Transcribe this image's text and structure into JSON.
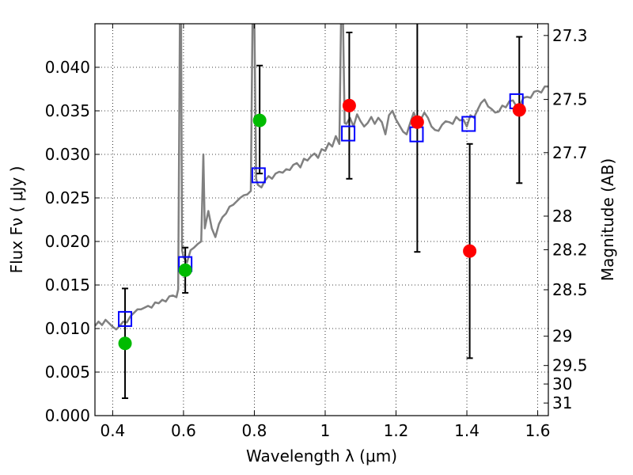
{
  "chart_data": {
    "type": "scatter",
    "xlabel": "Wavelength  λ (μm)",
    "ylabel": "Flux  Fν  ( μJy )",
    "y2label": "Magnitude (AB)",
    "xlim": [
      0.35,
      1.63
    ],
    "ylim": [
      0.0,
      0.045
    ],
    "grid": true,
    "grid_style": "dotted",
    "x_ticks": [
      0.4,
      0.6,
      0.8,
      1.0,
      1.2,
      1.4,
      1.6
    ],
    "x_tick_labels": [
      "0.4",
      "0.6",
      "0.8",
      "1",
      "1.2",
      "1.4",
      "1.6"
    ],
    "y_ticks": [
      0.0,
      0.005,
      0.01,
      0.015,
      0.02,
      0.025,
      0.03,
      0.035,
      0.04
    ],
    "y_tick_labels": [
      "0.000",
      "0.005",
      "0.010",
      "0.015",
      "0.020",
      "0.025",
      "0.030",
      "0.035",
      "0.040"
    ],
    "y2_ticks": [
      27.3,
      27.5,
      27.7,
      28,
      28.2,
      28.5,
      29,
      29.5,
      30,
      31
    ],
    "y2_tick_labels": [
      "27.3",
      "27.5",
      "27.7",
      "28",
      "28.2",
      "28.5",
      "29",
      "29.5",
      "30",
      "31"
    ],
    "series": [
      {
        "style": "line",
        "color": "#808080",
        "x": [
          0.35,
          0.36,
          0.37,
          0.38,
          0.39,
          0.4,
          0.41,
          0.42,
          0.43,
          0.44,
          0.45,
          0.46,
          0.47,
          0.48,
          0.49,
          0.5,
          0.51,
          0.52,
          0.53,
          0.54,
          0.55,
          0.56,
          0.57,
          0.58,
          0.585,
          0.59,
          0.593,
          0.596,
          0.6,
          0.61,
          0.62,
          0.63,
          0.64,
          0.65,
          0.656,
          0.66,
          0.67,
          0.68,
          0.69,
          0.7,
          0.71,
          0.72,
          0.73,
          0.74,
          0.75,
          0.76,
          0.77,
          0.78,
          0.79,
          0.795,
          0.8,
          0.805,
          0.81,
          0.82,
          0.83,
          0.84,
          0.85,
          0.86,
          0.87,
          0.88,
          0.89,
          0.9,
          0.91,
          0.92,
          0.93,
          0.94,
          0.95,
          0.96,
          0.97,
          0.98,
          0.99,
          1.0,
          1.01,
          1.02,
          1.03,
          1.04,
          1.045,
          1.05,
          1.055,
          1.06,
          1.07,
          1.08,
          1.09,
          1.1,
          1.11,
          1.12,
          1.13,
          1.14,
          1.15,
          1.16,
          1.17,
          1.18,
          1.19,
          1.2,
          1.21,
          1.22,
          1.23,
          1.24,
          1.25,
          1.26,
          1.27,
          1.28,
          1.29,
          1.3,
          1.31,
          1.32,
          1.33,
          1.34,
          1.35,
          1.36,
          1.37,
          1.38,
          1.39,
          1.4,
          1.41,
          1.42,
          1.43,
          1.44,
          1.45,
          1.46,
          1.47,
          1.48,
          1.49,
          1.5,
          1.51,
          1.52,
          1.53,
          1.54,
          1.55,
          1.56,
          1.57,
          1.58,
          1.59,
          1.6,
          1.61,
          1.62,
          1.63
        ],
        "y": [
          0.0103,
          0.0108,
          0.0104,
          0.011,
          0.0106,
          0.0102,
          0.0099,
          0.0103,
          0.0108,
          0.0107,
          0.0114,
          0.0118,
          0.0122,
          0.0122,
          0.0124,
          0.0126,
          0.0124,
          0.013,
          0.0129,
          0.0133,
          0.0131,
          0.0137,
          0.0138,
          0.0136,
          0.0145,
          0.046,
          0.046,
          0.019,
          0.0182,
          0.0176,
          0.019,
          0.0193,
          0.0197,
          0.02,
          0.03,
          0.0215,
          0.0235,
          0.0215,
          0.0205,
          0.022,
          0.0228,
          0.0232,
          0.024,
          0.0242,
          0.0246,
          0.025,
          0.0253,
          0.0254,
          0.0258,
          0.046,
          0.046,
          0.0272,
          0.0265,
          0.0262,
          0.027,
          0.0275,
          0.0272,
          0.0278,
          0.028,
          0.0279,
          0.0283,
          0.0282,
          0.0288,
          0.029,
          0.0285,
          0.0295,
          0.0293,
          0.0298,
          0.0301,
          0.0296,
          0.0306,
          0.0304,
          0.0313,
          0.0309,
          0.0321,
          0.0312,
          0.046,
          0.046,
          0.0336,
          0.0335,
          0.0342,
          0.0332,
          0.0346,
          0.0338,
          0.0332,
          0.0336,
          0.0343,
          0.0335,
          0.0342,
          0.0337,
          0.0323,
          0.0345,
          0.035,
          0.034,
          0.0333,
          0.0326,
          0.0323,
          0.0336,
          0.0348,
          0.0338,
          0.034,
          0.0348,
          0.0342,
          0.0332,
          0.0328,
          0.0327,
          0.0334,
          0.0338,
          0.0337,
          0.0335,
          0.0343,
          0.0339,
          0.034,
          0.0332,
          0.0345,
          0.0342,
          0.0351,
          0.0359,
          0.0363,
          0.0355,
          0.0352,
          0.0348,
          0.0349,
          0.0356,
          0.0354,
          0.0361,
          0.0362,
          0.0355,
          0.0357,
          0.0365,
          0.0366,
          0.0365,
          0.0372,
          0.0373,
          0.0371,
          0.0378,
          0.0378
        ]
      },
      {
        "style": "open-square",
        "color": "#0000ff",
        "x": [
          0.435,
          0.605,
          0.812,
          1.065,
          1.258,
          1.405,
          1.54
        ],
        "y": [
          0.0111,
          0.0174,
          0.0276,
          0.0324,
          0.0323,
          0.0335,
          0.0361
        ]
      },
      {
        "style": "filled-circle",
        "color": "#00bb00",
        "x": [
          0.435,
          0.605,
          0.815
        ],
        "y": [
          0.0083,
          0.0167,
          0.0339
        ],
        "yerr_low": [
          0.0063,
          0.0026,
          0.0061
        ],
        "yerr_high": [
          0.0063,
          0.0026,
          0.0063
        ]
      },
      {
        "style": "filled-circle",
        "color": "#ff0000",
        "x": [
          1.068,
          1.26,
          1.408,
          1.548
        ],
        "y": [
          0.0356,
          0.0337,
          0.0189,
          0.0351
        ],
        "yerr_low": [
          0.0084,
          0.0149,
          0.0123,
          0.0084
        ],
        "yerr_high": [
          0.0084,
          0.0149,
          0.0123,
          0.0084
        ]
      }
    ]
  }
}
